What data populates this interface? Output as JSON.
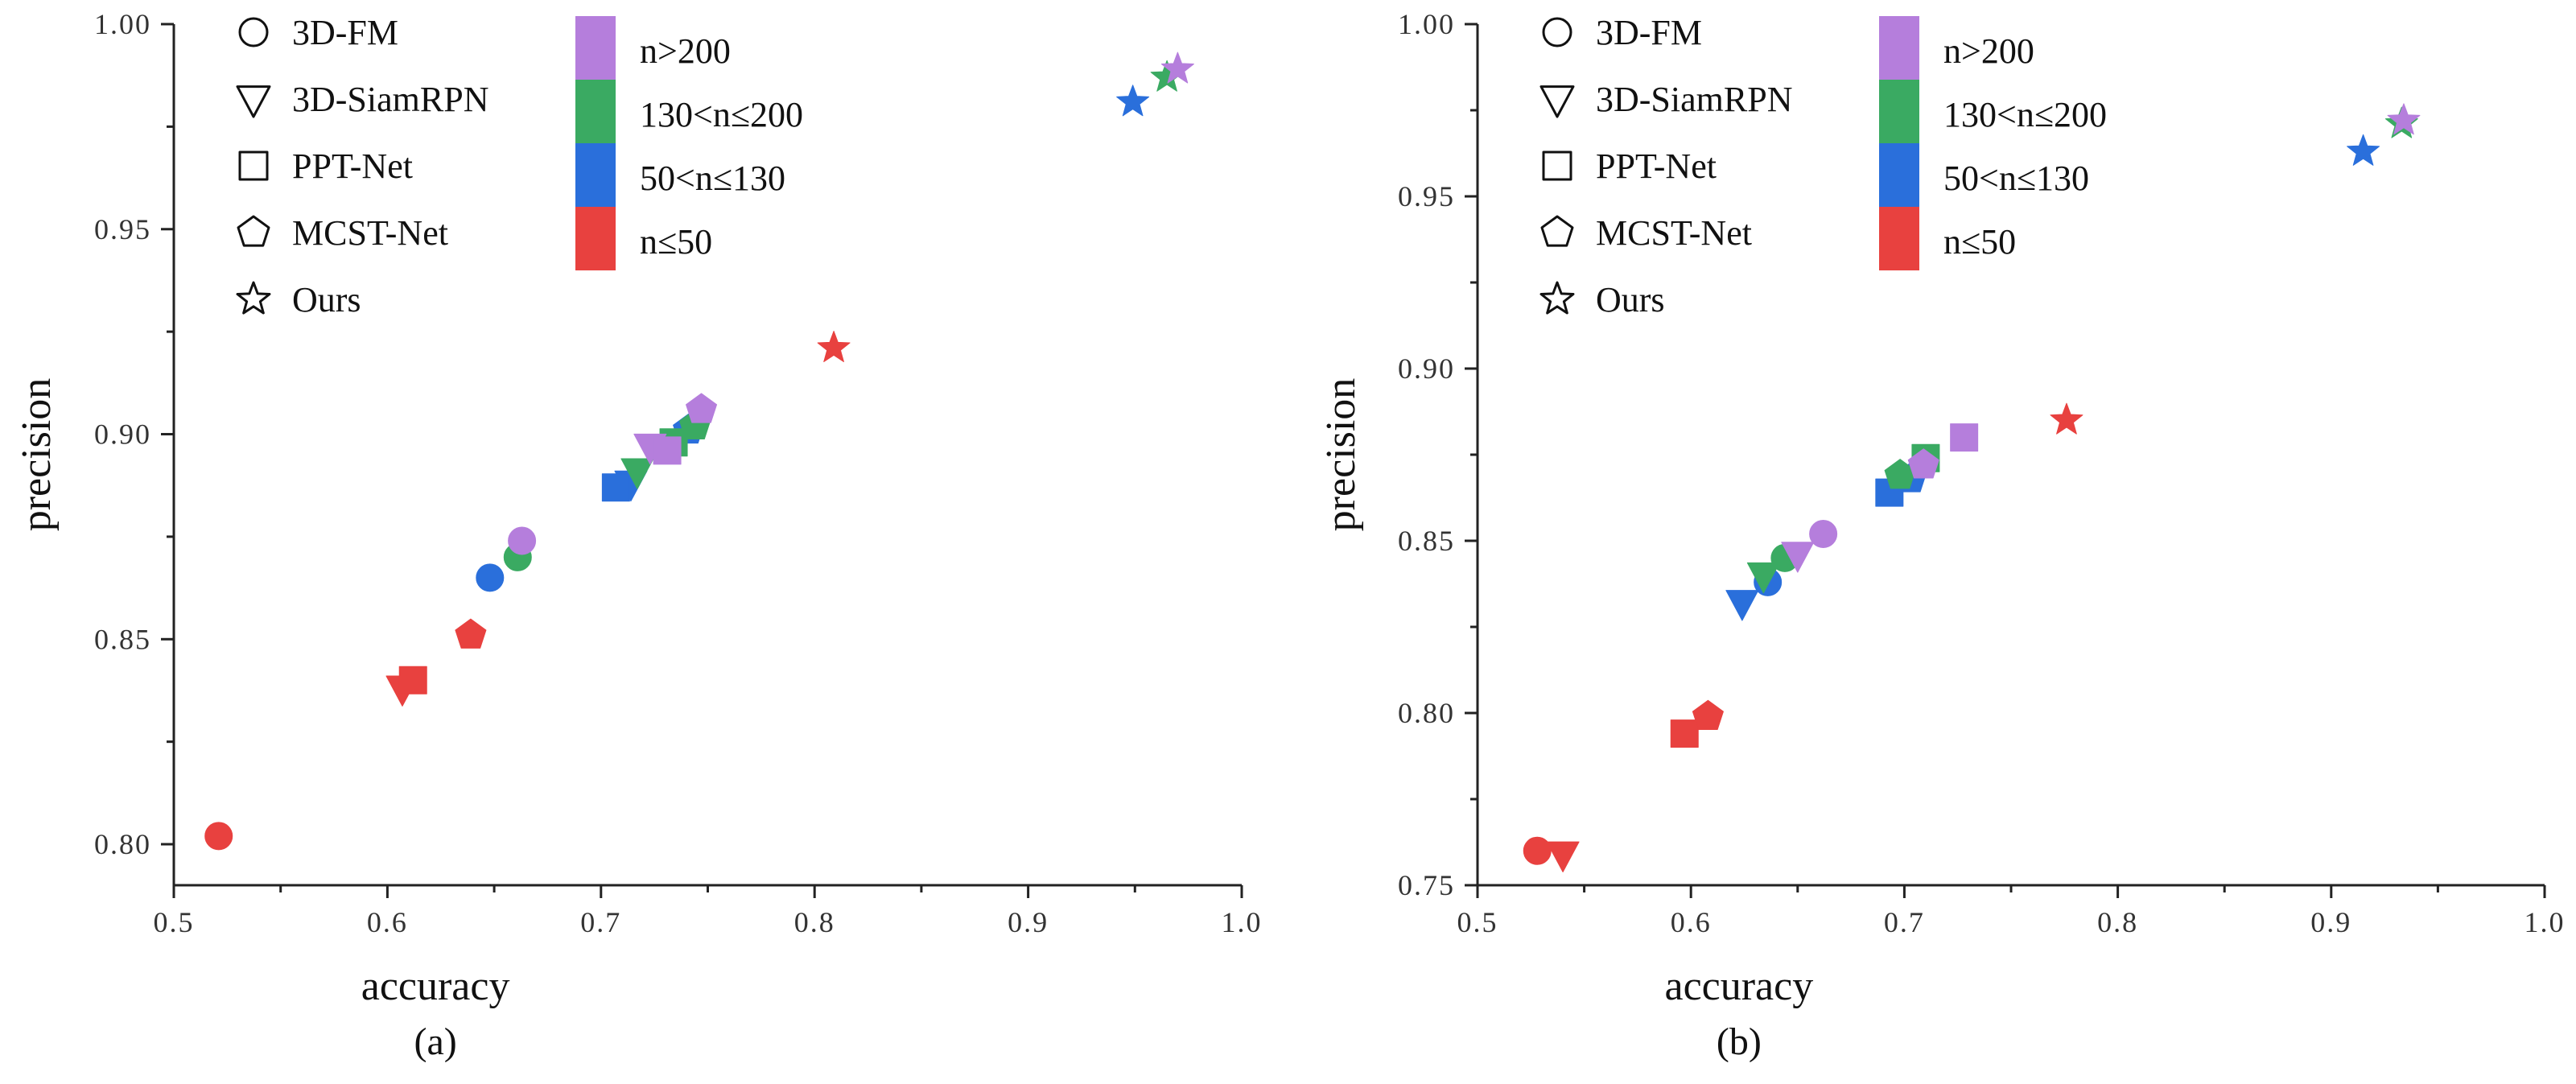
{
  "chart_data": [
    {
      "type": "scatter",
      "caption": "(a)",
      "xlabel": "accuracy",
      "ylabel": "precision",
      "xlim": [
        0.5,
        1.0
      ],
      "ylim": [
        0.79,
        1.0
      ],
      "xticks": [
        0.5,
        0.6,
        0.7,
        0.8,
        0.9,
        1.0
      ],
      "xtick_labels": [
        "0.5",
        "0.6",
        "0.7",
        "0.8",
        "0.9",
        "1.0"
      ],
      "yticks": [
        0.8,
        0.85,
        0.9,
        0.95,
        1.0
      ],
      "ytick_labels": [
        "0.80",
        "0.85",
        "0.90",
        "0.95",
        "1.00"
      ],
      "points": [
        {
          "method": "3D-FM",
          "group": "n≤50",
          "x": 0.521,
          "y": 0.802
        },
        {
          "method": "3D-FM",
          "group": "50<n≤130",
          "x": 0.648,
          "y": 0.865
        },
        {
          "method": "3D-FM",
          "group": "130<n≤200",
          "x": 0.661,
          "y": 0.87
        },
        {
          "method": "3D-FM",
          "group": "n>200",
          "x": 0.663,
          "y": 0.874
        },
        {
          "method": "3D-SiamRPN",
          "group": "n≤50",
          "x": 0.607,
          "y": 0.838
        },
        {
          "method": "3D-SiamRPN",
          "group": "50<n≤130",
          "x": 0.714,
          "y": 0.888
        },
        {
          "method": "3D-SiamRPN",
          "group": "130<n≤200",
          "x": 0.717,
          "y": 0.891
        },
        {
          "method": "3D-SiamRPN",
          "group": "n>200",
          "x": 0.723,
          "y": 0.897
        },
        {
          "method": "PPT-Net",
          "group": "n≤50",
          "x": 0.612,
          "y": 0.84
        },
        {
          "method": "PPT-Net",
          "group": "50<n≤130",
          "x": 0.707,
          "y": 0.887
        },
        {
          "method": "PPT-Net",
          "group": "130<n≤200",
          "x": 0.734,
          "y": 0.898
        },
        {
          "method": "PPT-Net",
          "group": "n>200",
          "x": 0.731,
          "y": 0.896
        },
        {
          "method": "MCST-Net",
          "group": "n≤50",
          "x": 0.639,
          "y": 0.851
        },
        {
          "method": "MCST-Net",
          "group": "50<n≤130",
          "x": 0.741,
          "y": 0.901
        },
        {
          "method": "MCST-Net",
          "group": "130<n≤200",
          "x": 0.744,
          "y": 0.902
        },
        {
          "method": "MCST-Net",
          "group": "n>200",
          "x": 0.747,
          "y": 0.906
        },
        {
          "method": "Ours",
          "group": "n≤50",
          "x": 0.809,
          "y": 0.921
        },
        {
          "method": "Ours",
          "group": "50<n≤130",
          "x": 0.949,
          "y": 0.981
        },
        {
          "method": "Ours",
          "group": "130<n≤200",
          "x": 0.965,
          "y": 0.987
        },
        {
          "method": "Ours",
          "group": "n>200",
          "x": 0.97,
          "y": 0.989
        }
      ]
    },
    {
      "type": "scatter",
      "caption": "(b)",
      "xlabel": "accuracy",
      "ylabel": "precision",
      "xlim": [
        0.5,
        1.0
      ],
      "ylim": [
        0.75,
        1.0
      ],
      "xticks": [
        0.5,
        0.6,
        0.7,
        0.8,
        0.9,
        1.0
      ],
      "xtick_labels": [
        "0.5",
        "0.6",
        "0.7",
        "0.8",
        "0.9",
        "1.0"
      ],
      "yticks": [
        0.75,
        0.8,
        0.85,
        0.9,
        0.95,
        1.0
      ],
      "ytick_labels": [
        "0.75",
        "0.80",
        "0.85",
        "0.90",
        "0.95",
        "1.00"
      ],
      "points": [
        {
          "method": "3D-FM",
          "group": "n≤50",
          "x": 0.528,
          "y": 0.76
        },
        {
          "method": "3D-FM",
          "group": "50<n≤130",
          "x": 0.636,
          "y": 0.838
        },
        {
          "method": "3D-FM",
          "group": "130<n≤200",
          "x": 0.644,
          "y": 0.845
        },
        {
          "method": "3D-FM",
          "group": "n>200",
          "x": 0.662,
          "y": 0.852
        },
        {
          "method": "3D-SiamRPN",
          "group": "n≤50",
          "x": 0.54,
          "y": 0.759
        },
        {
          "method": "3D-SiamRPN",
          "group": "50<n≤130",
          "x": 0.624,
          "y": 0.832
        },
        {
          "method": "3D-SiamRPN",
          "group": "130<n≤200",
          "x": 0.634,
          "y": 0.84
        },
        {
          "method": "3D-SiamRPN",
          "group": "n>200",
          "x": 0.65,
          "y": 0.846
        },
        {
          "method": "PPT-Net",
          "group": "n≤50",
          "x": 0.597,
          "y": 0.794
        },
        {
          "method": "PPT-Net",
          "group": "50<n≤130",
          "x": 0.693,
          "y": 0.864
        },
        {
          "method": "PPT-Net",
          "group": "130<n≤200",
          "x": 0.71,
          "y": 0.874
        },
        {
          "method": "PPT-Net",
          "group": "n>200",
          "x": 0.728,
          "y": 0.88
        },
        {
          "method": "MCST-Net",
          "group": "n≤50",
          "x": 0.608,
          "y": 0.799
        },
        {
          "method": "MCST-Net",
          "group": "50<n≤130",
          "x": 0.703,
          "y": 0.868
        },
        {
          "method": "MCST-Net",
          "group": "130<n≤200",
          "x": 0.698,
          "y": 0.869
        },
        {
          "method": "MCST-Net",
          "group": "n>200",
          "x": 0.709,
          "y": 0.872
        },
        {
          "method": "Ours",
          "group": "n≤50",
          "x": 0.776,
          "y": 0.885
        },
        {
          "method": "Ours",
          "group": "50<n≤130",
          "x": 0.915,
          "y": 0.963
        },
        {
          "method": "Ours",
          "group": "130<n≤200",
          "x": 0.933,
          "y": 0.971
        },
        {
          "method": "Ours",
          "group": "n>200",
          "x": 0.934,
          "y": 0.972
        }
      ]
    }
  ],
  "legend": {
    "methods": [
      {
        "label": "3D-FM",
        "marker": "circle"
      },
      {
        "label": "3D-SiamRPN",
        "marker": "triangle-down"
      },
      {
        "label": "PPT-Net",
        "marker": "square"
      },
      {
        "label": "MCST-Net",
        "marker": "pentagon"
      },
      {
        "label": "Ours",
        "marker": "star"
      }
    ],
    "groups": [
      {
        "label": "n>200",
        "color": "#B57EDC"
      },
      {
        "label": "130<n≤200",
        "color": "#3AAA62"
      },
      {
        "label": "50<n≤130",
        "color": "#2A6FDB"
      },
      {
        "label": "n≤50",
        "color": "#E8413F"
      }
    ]
  },
  "marker_order": [
    "n≤50",
    "50<n≤130",
    "130<n≤200",
    "n>200"
  ]
}
